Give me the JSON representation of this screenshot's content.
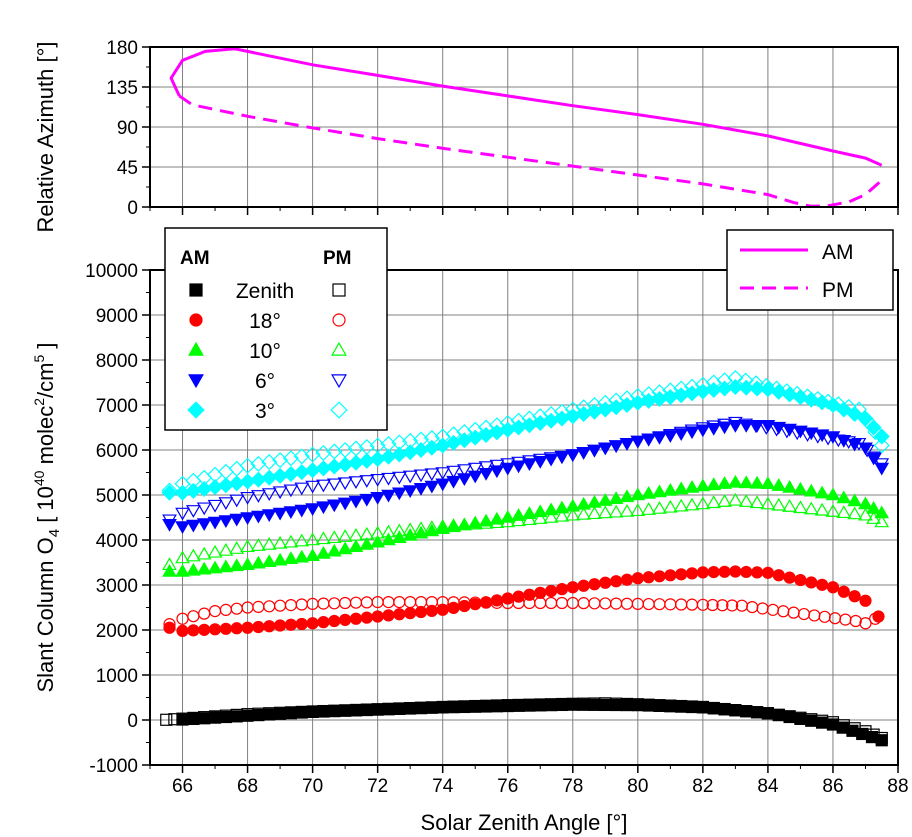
{
  "colors": {
    "azimuth": "#ff00ff",
    "zenith": "#000000",
    "elev18": "#ff0000",
    "elev10": "#00ff00",
    "elev6": "#0000ff",
    "elev3": "#00ffff",
    "grid": "#808080"
  },
  "chart_data": [
    {
      "type": "line",
      "ylabel": "Relative Azimuth [°]",
      "xlim": [
        65,
        88
      ],
      "ylim": [
        0,
        180
      ],
      "x_ticks": [
        66,
        68,
        70,
        72,
        74,
        76,
        78,
        80,
        82,
        84,
        86,
        88
      ],
      "y_ticks": [
        0,
        45,
        90,
        135,
        180
      ],
      "grid": true,
      "legend": {
        "placement": "bottom-right",
        "entries": [
          "AM",
          "PM"
        ]
      },
      "series": [
        {
          "name": "AM",
          "style": "solid",
          "x": [
            65.9,
            65.65,
            66.0,
            66.7,
            67.6,
            68,
            70,
            72,
            74,
            76,
            78,
            80,
            82,
            84,
            86,
            87.0,
            87.5
          ],
          "y": [
            125,
            145,
            165,
            175,
            178,
            175,
            160,
            148,
            136,
            125,
            114,
            104,
            93,
            80,
            63,
            55,
            47
          ]
        },
        {
          "name": "PM",
          "style": "dashed",
          "x": [
            65.9,
            66.3,
            68,
            70,
            72,
            74,
            76,
            78,
            80,
            82,
            84,
            84.8,
            85.3,
            85.8,
            86.5,
            87.0,
            87.5
          ],
          "y": [
            125,
            115,
            102,
            89,
            77,
            66,
            56,
            46,
            36,
            26,
            14,
            5,
            1,
            1,
            6,
            14,
            30
          ]
        }
      ]
    },
    {
      "type": "scatter",
      "xlabel": "Solar Zenith Angle [°]",
      "ylabel": "Slant Column O4 [ 10^40 molec^2/cm^5 ]",
      "xlim": [
        65,
        88
      ],
      "ylim": [
        -1000,
        10000
      ],
      "x_ticks": [
        66,
        68,
        70,
        72,
        74,
        76,
        78,
        80,
        82,
        84,
        86,
        88
      ],
      "y_ticks": [
        -1000,
        0,
        1000,
        2000,
        3000,
        4000,
        5000,
        6000,
        7000,
        8000,
        9000,
        10000
      ],
      "grid": true,
      "legend": {
        "placement": "top-left",
        "header_am": "AM",
        "header_pm": "PM",
        "labels": [
          "Zenith",
          "18°",
          "10°",
          "6°",
          "3°"
        ]
      },
      "series": [
        {
          "name": "Zenith AM",
          "marker": "square",
          "filled": true,
          "x": [
            66,
            70,
            74,
            78,
            80,
            82,
            84,
            86,
            87.5
          ],
          "y": [
            10,
            180,
            280,
            340,
            330,
            280,
            150,
            -100,
            -450
          ]
        },
        {
          "name": "Zenith PM",
          "marker": "square",
          "filled": false,
          "x": [
            65.5,
            66,
            68,
            70,
            72,
            74,
            76,
            78,
            79,
            80,
            82,
            84,
            86,
            87.0,
            87.5
          ],
          "y": [
            5,
            30,
            130,
            190,
            240,
            290,
            330,
            360,
            370,
            350,
            290,
            150,
            -50,
            -250,
            -400
          ]
        },
        {
          "name": "18° AM",
          "marker": "circle",
          "filled": true,
          "x": [
            65.6,
            66,
            68,
            70,
            72,
            74,
            76,
            78,
            80,
            82,
            83,
            84,
            86,
            87,
            87.4
          ],
          "y": [
            2050,
            1980,
            2050,
            2150,
            2300,
            2450,
            2700,
            2950,
            3150,
            3280,
            3300,
            3270,
            2950,
            2650,
            2300
          ]
        },
        {
          "name": "18° PM",
          "marker": "circle",
          "filled": false,
          "x": [
            65.6,
            66,
            67,
            68,
            70,
            72,
            74,
            76,
            78,
            80,
            82,
            83.2,
            86.7,
            87.0,
            87.3
          ],
          "y": [
            2130,
            2250,
            2420,
            2500,
            2580,
            2620,
            2620,
            2600,
            2600,
            2580,
            2560,
            2540,
            2200,
            2150,
            2250
          ]
        },
        {
          "name": "10° AM",
          "marker": "triangle-up",
          "filled": true,
          "x": [
            65.6,
            66,
            68,
            70,
            72,
            74,
            76,
            78,
            80,
            82,
            83,
            84,
            86,
            87,
            87.5
          ],
          "y": [
            3300,
            3300,
            3450,
            3650,
            3950,
            4250,
            4500,
            4750,
            5000,
            5200,
            5280,
            5250,
            5000,
            4800,
            4600
          ]
        },
        {
          "name": "10° PM",
          "marker": "triangle-up",
          "filled": false,
          "x": [
            65.6,
            66,
            68,
            70,
            72,
            74,
            76,
            78,
            80,
            82,
            83,
            87.0,
            87.5
          ],
          "y": [
            3450,
            3600,
            3850,
            4000,
            4150,
            4300,
            4400,
            4550,
            4650,
            4800,
            4880,
            4550,
            4400
          ]
        },
        {
          "name": "6° AM",
          "marker": "triangle-down",
          "filled": true,
          "x": [
            65.6,
            66,
            68,
            70,
            72,
            74,
            76,
            78,
            80,
            82,
            83,
            84,
            86,
            87,
            87.5
          ],
          "y": [
            4350,
            4300,
            4500,
            4700,
            4950,
            5250,
            5600,
            5900,
            6200,
            6450,
            6550,
            6550,
            6300,
            6050,
            5600
          ]
        },
        {
          "name": "6° PM",
          "marker": "triangle-down",
          "filled": false,
          "x": [
            65.6,
            66,
            68,
            70,
            72,
            74,
            76,
            78,
            80,
            82,
            83,
            86.8,
            87.3,
            87.5
          ],
          "y": [
            4450,
            4600,
            4950,
            5200,
            5350,
            5500,
            5700,
            5900,
            6200,
            6500,
            6620,
            6150,
            5850,
            5700
          ]
        },
        {
          "name": "3° AM",
          "marker": "diamond",
          "filled": true,
          "x": [
            65.6,
            66,
            68,
            70,
            72,
            74,
            76,
            78,
            80,
            82,
            83,
            84,
            86,
            87,
            87.5
          ],
          "y": [
            5050,
            5050,
            5300,
            5550,
            5800,
            6100,
            6450,
            6750,
            7050,
            7300,
            7400,
            7350,
            7000,
            6700,
            6300
          ]
        },
        {
          "name": "3° PM",
          "marker": "diamond",
          "filled": false,
          "x": [
            65.6,
            66,
            68,
            70,
            72,
            74,
            76,
            78,
            80,
            82,
            83,
            86.8,
            87.3,
            87.5
          ],
          "y": [
            5100,
            5250,
            5650,
            5900,
            6100,
            6300,
            6600,
            6900,
            7200,
            7450,
            7600,
            6900,
            6400,
            6100
          ]
        }
      ]
    }
  ]
}
